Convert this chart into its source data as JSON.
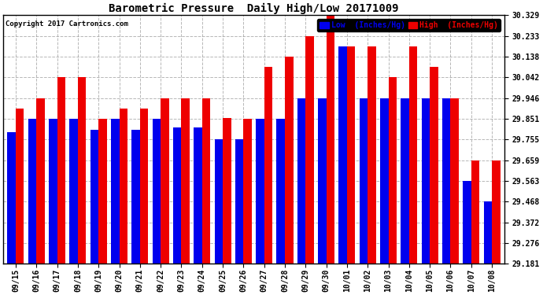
{
  "title": "Barometric Pressure  Daily High/Low 20171009",
  "copyright": "Copyright 2017 Cartronics.com",
  "legend_low": "Low  (Inches/Hg)",
  "legend_high": "High  (Inches/Hg)",
  "dates": [
    "09/15",
    "09/16",
    "09/17",
    "09/18",
    "09/19",
    "09/20",
    "09/21",
    "09/22",
    "09/23",
    "09/24",
    "09/25",
    "09/26",
    "09/27",
    "09/28",
    "09/29",
    "09/30",
    "10/01",
    "10/02",
    "10/03",
    "10/04",
    "10/05",
    "10/06",
    "10/07",
    "10/08"
  ],
  "low_values": [
    29.79,
    29.851,
    29.851,
    29.851,
    29.8,
    29.851,
    29.8,
    29.851,
    29.81,
    29.81,
    29.755,
    29.755,
    29.851,
    29.851,
    29.946,
    29.946,
    30.185,
    29.946,
    29.946,
    29.946,
    29.946,
    29.946,
    29.563,
    29.468
  ],
  "high_values": [
    29.898,
    29.946,
    30.042,
    30.042,
    29.851,
    29.898,
    29.898,
    29.946,
    29.946,
    29.946,
    29.855,
    29.851,
    30.09,
    30.138,
    30.233,
    30.329,
    30.185,
    30.185,
    30.042,
    30.185,
    30.09,
    29.946,
    29.659,
    29.659
  ],
  "ymin": 29.181,
  "ymax": 30.329,
  "yticks": [
    29.181,
    29.276,
    29.372,
    29.468,
    29.563,
    29.659,
    29.755,
    29.851,
    29.946,
    30.042,
    30.138,
    30.233,
    30.329
  ],
  "low_color": "#0000ee",
  "high_color": "#ee0000",
  "bg_color": "#ffffff",
  "grid_color": "#999999",
  "title_fontsize": 10,
  "bar_width": 0.4
}
